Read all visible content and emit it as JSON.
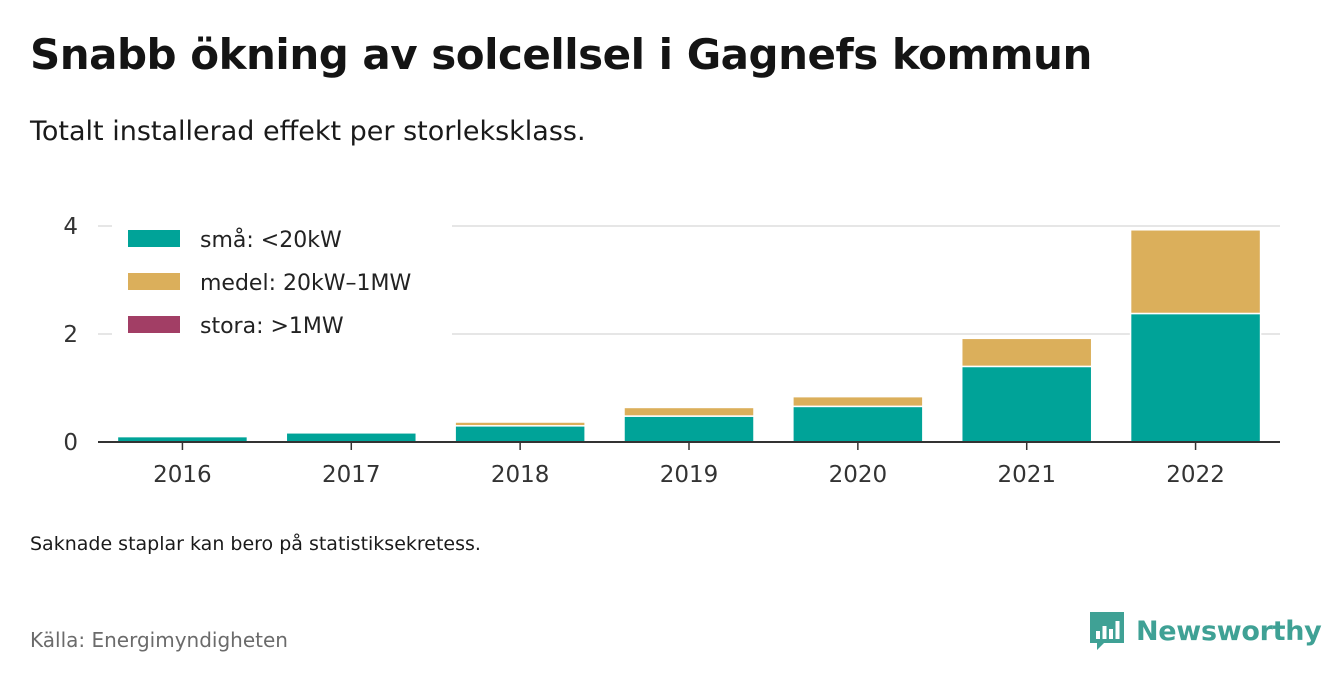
{
  "title": "Snabb ökning av solcellsel i Gagnefs kommun",
  "subtitle": "Totalt installerad effekt per storleksklass.",
  "note": "Saknade staplar kan bero på statistiksekretess.",
  "source": "Källa: Energimyndigheten",
  "brand": {
    "name": "Newsworthy",
    "icon": "newsworthy-logo-icon",
    "color": "#3fa195"
  },
  "chart_data": {
    "type": "bar",
    "stacked": true,
    "categories": [
      "2016",
      "2017",
      "2018",
      "2019",
      "2020",
      "2021",
      "2022"
    ],
    "series": [
      {
        "name": "små: <20kW",
        "color": "#00a398",
        "values": [
          0.1,
          0.17,
          0.3,
          0.48,
          0.66,
          1.4,
          2.38
        ]
      },
      {
        "name": "medel: 20kW–1MW",
        "color": "#dbaf5b",
        "values": [
          0.0,
          0.0,
          0.07,
          0.16,
          0.18,
          0.52,
          1.55
        ]
      },
      {
        "name": "stora: >1MW",
        "color": "#a23e65",
        "values": [
          0,
          0,
          0,
          0,
          0,
          0,
          0
        ]
      }
    ],
    "yticks": [
      0,
      2,
      4
    ],
    "ylim": [
      0,
      4
    ],
    "grid": true,
    "legend_position": "top-left"
  }
}
